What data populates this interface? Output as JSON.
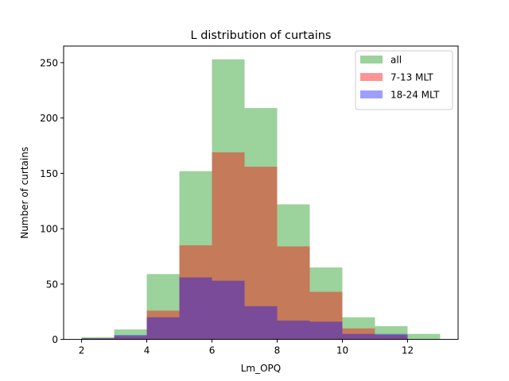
{
  "chart_data": {
    "type": "bar",
    "title": "L distribution of curtains",
    "xlabel": "Lm_OPQ",
    "ylabel": "Number of curtains",
    "xlim": [
      1.45,
      13.55
    ],
    "ylim": [
      0,
      265
    ],
    "xticks": [
      2,
      4,
      6,
      8,
      10,
      12
    ],
    "yticks": [
      0,
      50,
      100,
      150,
      200,
      250
    ],
    "bin_edges": [
      2,
      3,
      4,
      5,
      6,
      7,
      8,
      9,
      10,
      11,
      12,
      13
    ],
    "legend_position": "top-right",
    "series": [
      {
        "name": "all",
        "color": "#2ca02c",
        "alpha": 0.47,
        "values": [
          2,
          9,
          59,
          152,
          253,
          209,
          122,
          65,
          20,
          12,
          5
        ]
      },
      {
        "name": "7-13 MLT",
        "color": "#ff0000",
        "alpha": 0.42,
        "values": [
          1,
          3,
          26,
          85,
          169,
          156,
          84,
          43,
          10,
          4,
          0
        ]
      },
      {
        "name": "18-24 MLT",
        "color": "#0000ff",
        "alpha": 0.38,
        "values": [
          1,
          4,
          20,
          56,
          53,
          30,
          17,
          16,
          5,
          5,
          0
        ]
      }
    ]
  }
}
